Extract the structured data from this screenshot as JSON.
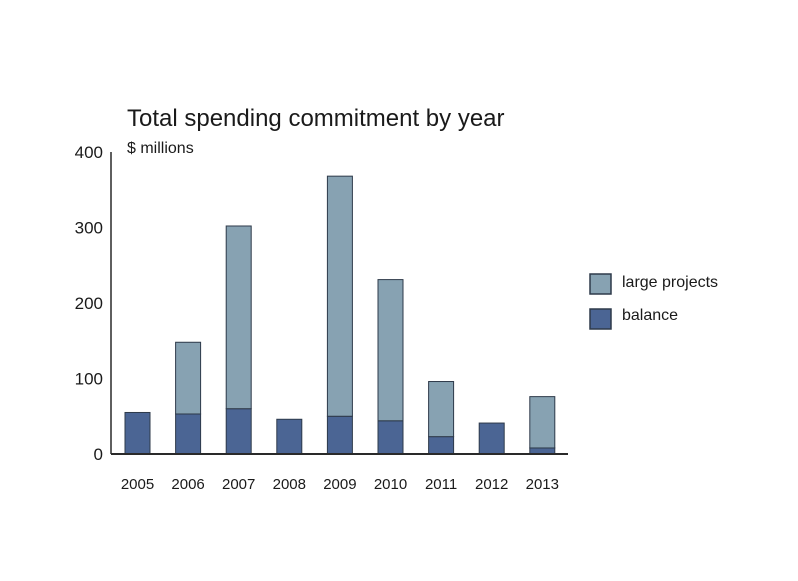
{
  "colors": {
    "large_projects": "#87a2b2",
    "balance": "#4b6594",
    "axis": "#2a2a2a",
    "bar_stroke": "#2e3a4a"
  },
  "chart_data": {
    "type": "bar",
    "stacked": true,
    "title": "Total spending commitment by year",
    "subtitle": "$ millions",
    "xlabel": "",
    "ylabel": "",
    "ylim": [
      0,
      400
    ],
    "yticks": [
      0,
      100,
      200,
      300,
      400
    ],
    "categories": [
      "2005",
      "2006",
      "2007",
      "2008",
      "2009",
      "2010",
      "2011",
      "2012",
      "2013"
    ],
    "series": [
      {
        "name": "balance",
        "values": [
          55,
          53,
          60,
          46,
          50,
          44,
          23,
          41,
          8
        ]
      },
      {
        "name": "large projects",
        "values": [
          0,
          95,
          242,
          0,
          318,
          187,
          73,
          0,
          68
        ]
      }
    ],
    "legend_position": "right",
    "grid": false
  },
  "legend": {
    "items": [
      {
        "label": "large projects",
        "series": "large projects"
      },
      {
        "label": "balance",
        "series": "balance"
      }
    ]
  }
}
